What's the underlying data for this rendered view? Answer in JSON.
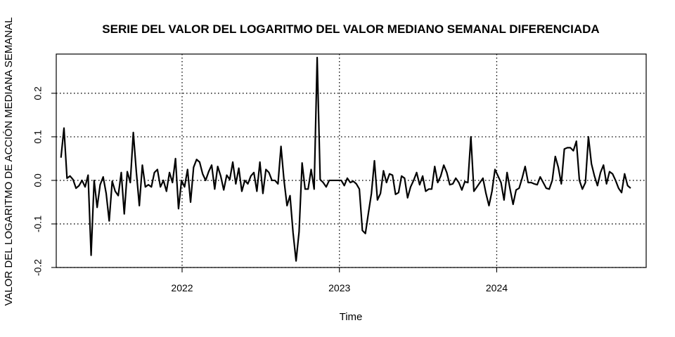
{
  "chart_data": {
    "type": "line",
    "title": "SERIE DEL VALOR DEL LOGARITMO DEL VALOR MEDIANO SEMANAL DIFERENCIADA",
    "xlabel": "Time",
    "ylabel": "VALOR DEL LOGARITMO DE ACCIÓN MEDIANA SEMANAL",
    "x_start": 2021.23,
    "x_step": 0.01916,
    "xlim": [
      2021.2,
      2024.95
    ],
    "ylim": [
      -0.2,
      0.29
    ],
    "x_ticks": [
      2022,
      2023,
      2024
    ],
    "x_tick_labels": [
      "2022",
      "2023",
      "2024"
    ],
    "y_ticks": [
      -0.2,
      -0.1,
      0.0,
      0.1,
      0.2
    ],
    "y_tick_labels": [
      "-0.2",
      "-0.1",
      "0.0",
      "0.1",
      "0.2"
    ],
    "grid": true,
    "line_color": "#000000",
    "grid_color": "#000000",
    "series": [
      {
        "values": [
          0.052,
          0.12,
          0.005,
          0.01,
          0.002,
          -0.018,
          -0.012,
          0.0,
          -0.015,
          0.012,
          -0.172,
          0.0,
          -0.062,
          -0.01,
          0.008,
          -0.03,
          -0.093,
          -0.002,
          -0.025,
          -0.035,
          0.018,
          -0.077,
          0.02,
          -0.005,
          0.11,
          0.02,
          -0.058,
          0.035,
          -0.015,
          -0.01,
          -0.015,
          0.018,
          0.025,
          -0.015,
          0.0,
          -0.025,
          0.018,
          -0.005,
          0.05,
          -0.065,
          0.0,
          -0.015,
          0.025,
          -0.05,
          0.03,
          0.048,
          0.042,
          0.015,
          0.0,
          0.02,
          0.035,
          -0.02,
          0.032,
          0.01,
          -0.022,
          0.012,
          0.002,
          0.042,
          -0.008,
          0.028,
          -0.025,
          0.0,
          -0.008,
          0.01,
          0.018,
          -0.025,
          0.042,
          -0.03,
          0.025,
          0.018,
          0.0,
          0.0,
          -0.008,
          0.078,
          0.0,
          -0.058,
          -0.035,
          -0.12,
          -0.185,
          -0.118,
          0.04,
          -0.02,
          -0.02,
          0.025,
          -0.02,
          0.282,
          0.002,
          -0.005,
          -0.015,
          0.0,
          0.0,
          0.0,
          0.0,
          0.0,
          -0.012,
          0.005,
          -0.005,
          -0.002,
          -0.008,
          -0.02,
          -0.115,
          -0.122,
          -0.075,
          -0.03,
          0.045,
          -0.045,
          -0.03,
          0.022,
          -0.005,
          0.015,
          0.012,
          -0.032,
          -0.028,
          0.01,
          0.005,
          -0.04,
          -0.015,
          0.0,
          0.018,
          -0.01,
          0.01,
          -0.025,
          -0.02,
          -0.02,
          0.032,
          -0.005,
          0.01,
          0.035,
          0.018,
          -0.01,
          -0.008,
          0.005,
          -0.005,
          -0.022,
          -0.003,
          -0.005,
          0.1,
          -0.025,
          -0.015,
          -0.005,
          0.005,
          -0.03,
          -0.058,
          -0.025,
          0.025,
          0.01,
          -0.005,
          -0.045,
          0.018,
          -0.02,
          -0.055,
          -0.022,
          -0.018,
          0.005,
          0.032,
          -0.005,
          -0.005,
          -0.008,
          -0.01,
          0.008,
          -0.005,
          -0.018,
          -0.02,
          0.0,
          0.055,
          0.03,
          -0.008,
          0.072,
          0.075,
          0.075,
          0.068,
          0.09,
          0.0,
          -0.02,
          -0.005,
          0.1,
          0.038,
          0.01,
          -0.012,
          0.018,
          0.035,
          -0.008,
          0.02,
          0.015,
          0.0,
          -0.018,
          -0.028,
          0.015,
          -0.012,
          -0.018
        ]
      }
    ]
  }
}
